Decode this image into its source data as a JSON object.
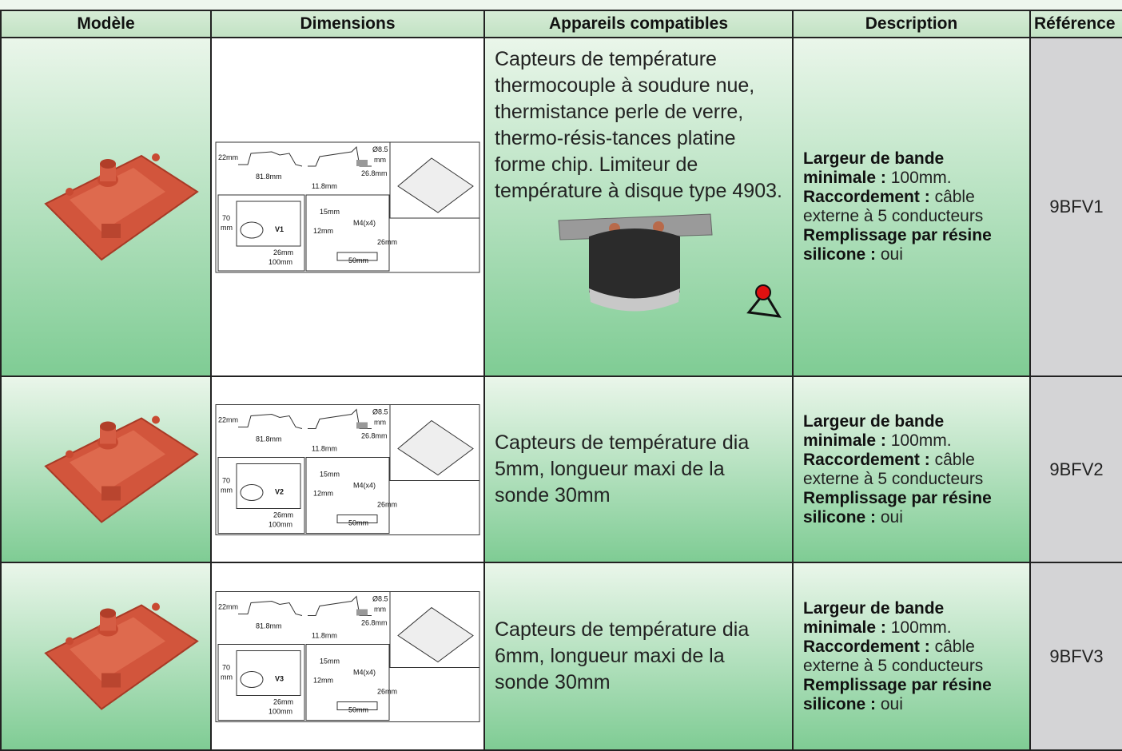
{
  "table": {
    "headers": [
      "Modèle",
      "Dimensions",
      "Appareils compatibles",
      "Description",
      "Référence"
    ],
    "rows": [
      {
        "variant": "V1",
        "dimensions": [
          "22mm",
          "81.8mm",
          "Ø8.5",
          "mm",
          "26.8mm",
          "11.8mm",
          "70",
          "mm",
          "26mm",
          "100mm",
          "15mm",
          "M4(x4)",
          "12mm",
          "26mm",
          "50mm"
        ],
        "compatible": "Capteurs de température thermocouple à soudure nue, thermistance perle de verre, thermo-résis-tances platine forme chip. Limiteur de température à disque type 4903.",
        "description": [
          {
            "label": "Largeur de bande minimale :",
            "value": "100mm."
          },
          {
            "label": "Raccordement :",
            "value": "câble externe à 5 conducteurs"
          },
          {
            "label": "Remplissage par résine silicone :",
            "value": "oui"
          }
        ],
        "reference": "9BFV1"
      },
      {
        "variant": "V2",
        "dimensions": [
          "22mm",
          "81.8mm",
          "Ø8.5",
          "mm",
          "26.8mm",
          "11.8mm",
          "70",
          "mm",
          "26mm",
          "100mm",
          "15mm",
          "M4(x4)",
          "12mm",
          "26mm",
          "50mm"
        ],
        "compatible": "Capteurs de température dia 5mm, longueur maxi de la sonde 30mm",
        "description": [
          {
            "label": "Largeur de bande minimale :",
            "value": "100mm."
          },
          {
            "label": "Raccordement :",
            "value": "câble externe à 5 conducteurs"
          },
          {
            "label": "Remplissage par résine silicone :",
            "value": "oui"
          }
        ],
        "reference": "9BFV2"
      },
      {
        "variant": "V3",
        "dimensions": [
          "22mm",
          "81.8mm",
          "Ø8.5",
          "mm",
          "26.8mm",
          "11.8mm",
          "70",
          "mm",
          "26mm",
          "100mm",
          "15mm",
          "M4(x4)",
          "12mm",
          "26mm",
          "50mm"
        ],
        "compatible": "Capteurs de température dia 6mm, longueur maxi de la sonde 30mm",
        "description": [
          {
            "label": "Largeur de bande minimale :",
            "value": "100mm."
          },
          {
            "label": "Raccordement :",
            "value": "câble externe à 5 conducteurs"
          },
          {
            "label": "Remplissage par résine silicone :",
            "value": "oui"
          }
        ],
        "reference": "9BFV3"
      }
    ]
  }
}
